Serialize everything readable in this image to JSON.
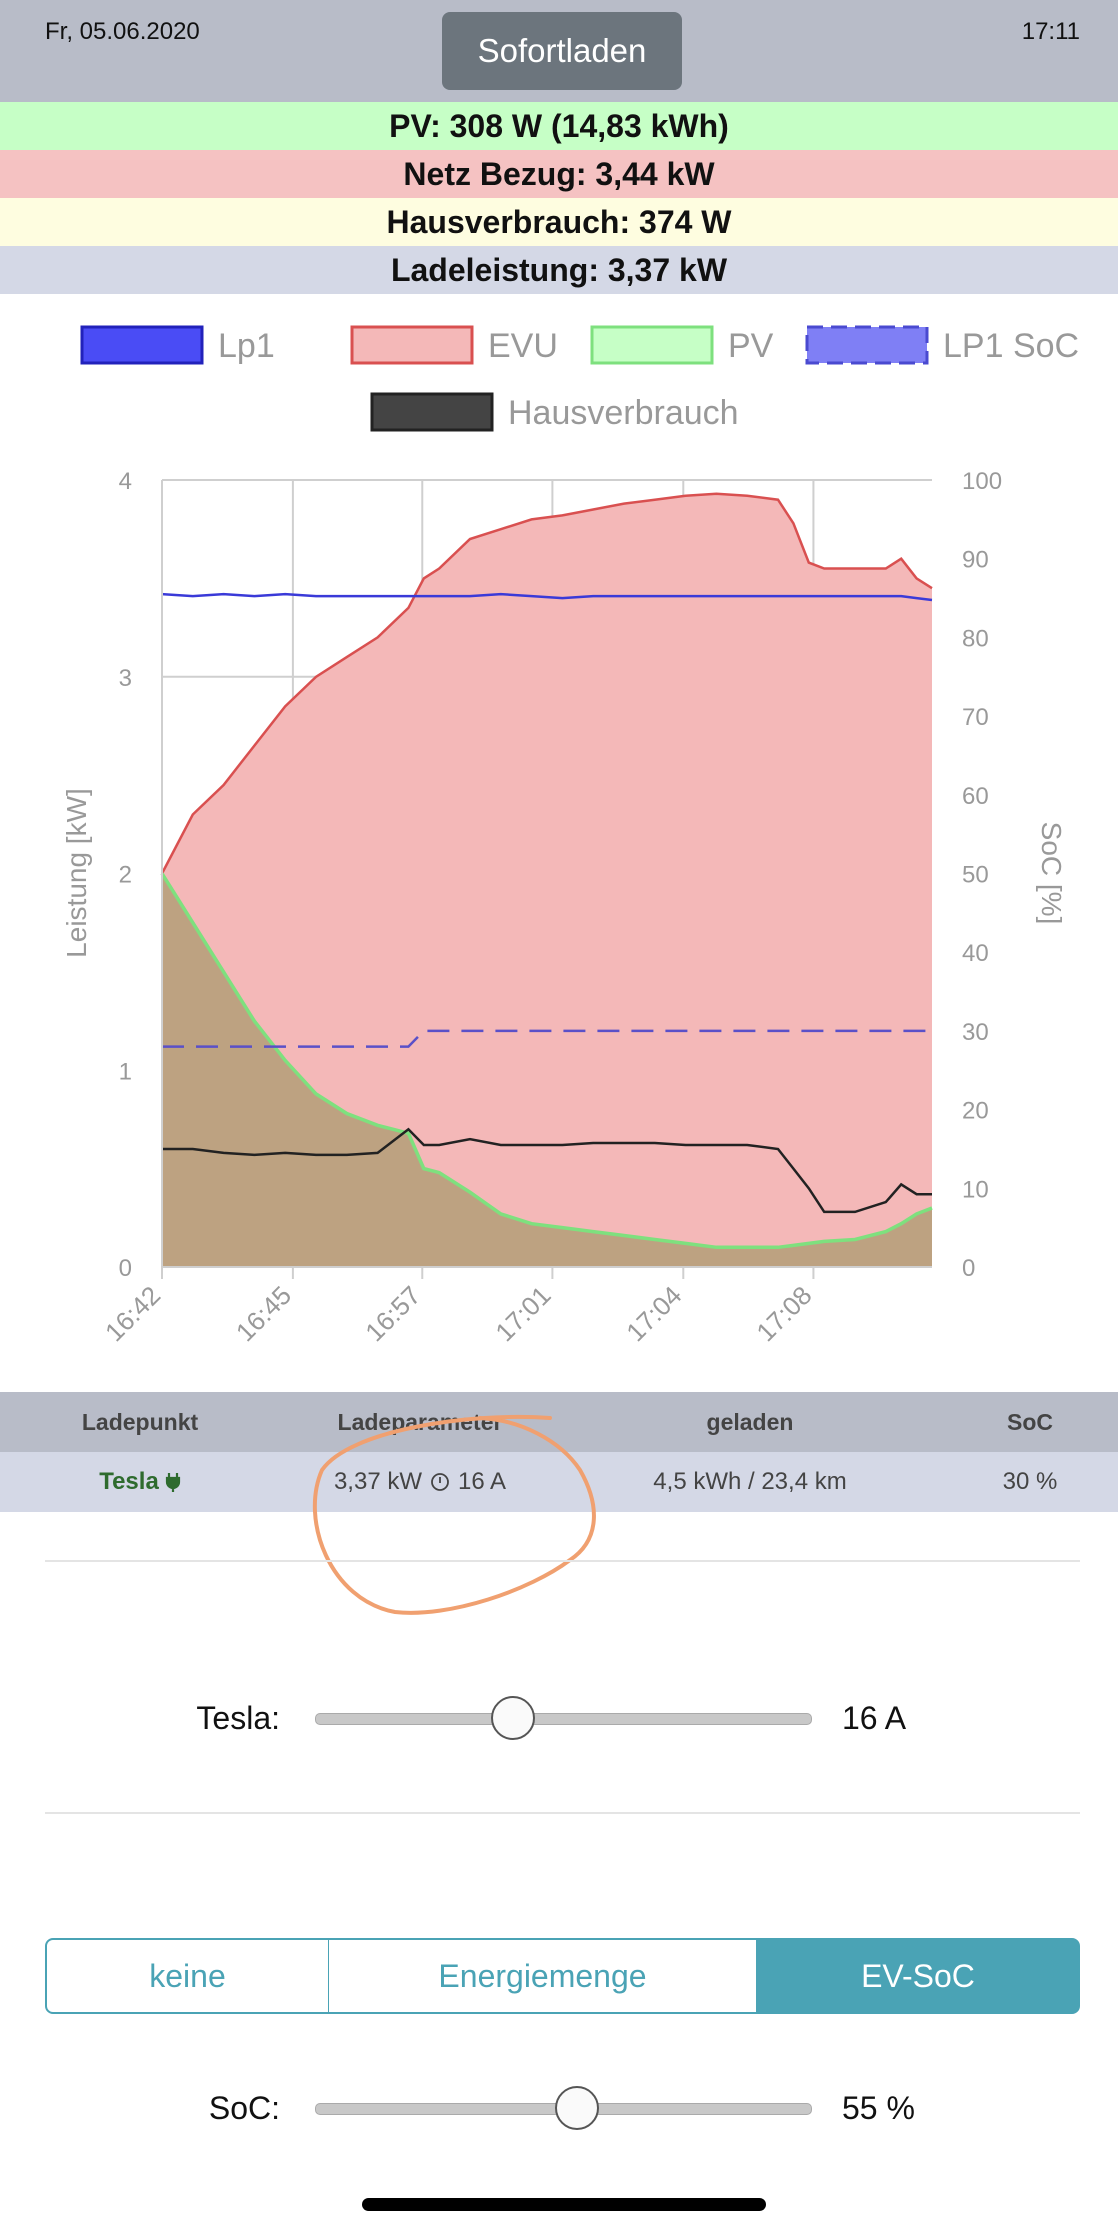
{
  "header": {
    "date": "Fr, 05.06.2020",
    "time": "17:11",
    "mode_button": "Sofortladen"
  },
  "status": [
    {
      "text": "PV: 308 W (14,83 kWh)",
      "color": "#c6ffc6"
    },
    {
      "text": "Netz Bezug: 3,44 kW",
      "color": "#f5c2c2"
    },
    {
      "text": "Hausverbrauch: 374 W",
      "color": "#fefde0"
    },
    {
      "text": "Ladeleistung: 3,37 kW",
      "color": "#d4d8e6"
    }
  ],
  "chart_data": {
    "type": "line",
    "legend": [
      {
        "name": "Lp1",
        "fill": "#4a4cf5",
        "stroke": "#2222bb",
        "dashed": false
      },
      {
        "name": "EVU",
        "fill": "#f4b8b8",
        "stroke": "#d95050",
        "dashed": false
      },
      {
        "name": "PV",
        "fill": "#c6ffc6",
        "stroke": "#7ee07e",
        "dashed": false
      },
      {
        "name": "LP1 SoC",
        "fill": "#7f7ff5",
        "stroke": "#4a4ad0",
        "dashed": true
      },
      {
        "name": "Hausverbrauch",
        "fill": "#444444",
        "stroke": "#222222",
        "dashed": false
      }
    ],
    "legend_position": "top",
    "ylabel_left": "Leistung [kW]",
    "ylabel_right": "SoC [%]",
    "ylim_left": [
      0,
      4
    ],
    "ylim_right": [
      0,
      100
    ],
    "yticks_left": [
      "0",
      "1",
      "2",
      "3",
      "4"
    ],
    "yticks_right": [
      "0",
      "10",
      "20",
      "30",
      "40",
      "50",
      "60",
      "70",
      "80",
      "90",
      "100"
    ],
    "xticks": [
      "16:42",
      "16:45",
      "16:57",
      "17:01",
      "17:04",
      "17:08"
    ],
    "grid": true,
    "x": [
      0,
      0.04,
      0.08,
      0.12,
      0.16,
      0.2,
      0.24,
      0.28,
      0.32,
      0.34,
      0.36,
      0.4,
      0.44,
      0.48,
      0.52,
      0.56,
      0.6,
      0.64,
      0.68,
      0.72,
      0.76,
      0.8,
      0.82,
      0.84,
      0.86,
      0.9,
      0.94,
      0.96,
      0.98,
      1.0
    ],
    "series": [
      {
        "name": "EVU",
        "axis": "left",
        "values": [
          2.0,
          2.3,
          2.45,
          2.65,
          2.85,
          3.0,
          3.1,
          3.2,
          3.35,
          3.5,
          3.55,
          3.7,
          3.75,
          3.8,
          3.82,
          3.85,
          3.88,
          3.9,
          3.92,
          3.93,
          3.92,
          3.9,
          3.78,
          3.58,
          3.55,
          3.55,
          3.55,
          3.6,
          3.5,
          3.45
        ]
      },
      {
        "name": "PV",
        "axis": "left",
        "values": [
          2.0,
          1.75,
          1.5,
          1.25,
          1.05,
          0.88,
          0.78,
          0.72,
          0.68,
          0.5,
          0.48,
          0.38,
          0.27,
          0.22,
          0.2,
          0.18,
          0.16,
          0.14,
          0.12,
          0.1,
          0.1,
          0.1,
          0.11,
          0.12,
          0.13,
          0.14,
          0.18,
          0.22,
          0.27,
          0.3
        ]
      },
      {
        "name": "Lp1",
        "axis": "left",
        "values": [
          3.42,
          3.41,
          3.42,
          3.41,
          3.42,
          3.41,
          3.41,
          3.41,
          3.41,
          3.41,
          3.41,
          3.41,
          3.42,
          3.41,
          3.4,
          3.41,
          3.41,
          3.41,
          3.41,
          3.41,
          3.41,
          3.41,
          3.41,
          3.41,
          3.41,
          3.41,
          3.41,
          3.41,
          3.4,
          3.39
        ]
      },
      {
        "name": "Hausverbrauch",
        "axis": "left",
        "values": [
          0.6,
          0.6,
          0.58,
          0.57,
          0.58,
          0.57,
          0.57,
          0.58,
          0.7,
          0.62,
          0.62,
          0.65,
          0.62,
          0.62,
          0.62,
          0.63,
          0.63,
          0.63,
          0.62,
          0.62,
          0.62,
          0.6,
          0.5,
          0.4,
          0.28,
          0.28,
          0.33,
          0.42,
          0.37,
          0.37
        ]
      },
      {
        "name": "LP1 SoC",
        "axis": "right",
        "values": [
          28,
          28,
          28,
          28,
          28,
          28,
          28,
          28,
          28,
          30,
          30,
          30,
          30,
          30,
          30,
          30,
          30,
          30,
          30,
          30,
          30,
          30,
          30,
          30,
          30,
          30,
          30,
          30,
          30,
          30
        ]
      }
    ]
  },
  "table": {
    "headers": [
      "Ladepunkt",
      "Ladeparameter",
      "geladen",
      "SoC"
    ],
    "row": {
      "name": "Tesla",
      "plug_icon": "plug-icon",
      "power": "3,37 kW",
      "clock_icon": "clock-icon",
      "current": "16 A",
      "charged": "4,5 kWh / 23,4 km",
      "soc": "30 %"
    }
  },
  "current_slider": {
    "label": "Tesla:",
    "value": "16 A",
    "fraction": 0.4
  },
  "limit_tabs": [
    {
      "label": "keine",
      "active": false
    },
    {
      "label": "Energiemenge",
      "active": false
    },
    {
      "label": "EV-SoC",
      "active": true
    }
  ],
  "soc_slider": {
    "label": "SoC:",
    "value": "55 %",
    "fraction": 0.53
  },
  "colors": {
    "accent": "#4aa3b5",
    "tesla_green": "#2e6b2e",
    "annotation": "#f0a070"
  }
}
